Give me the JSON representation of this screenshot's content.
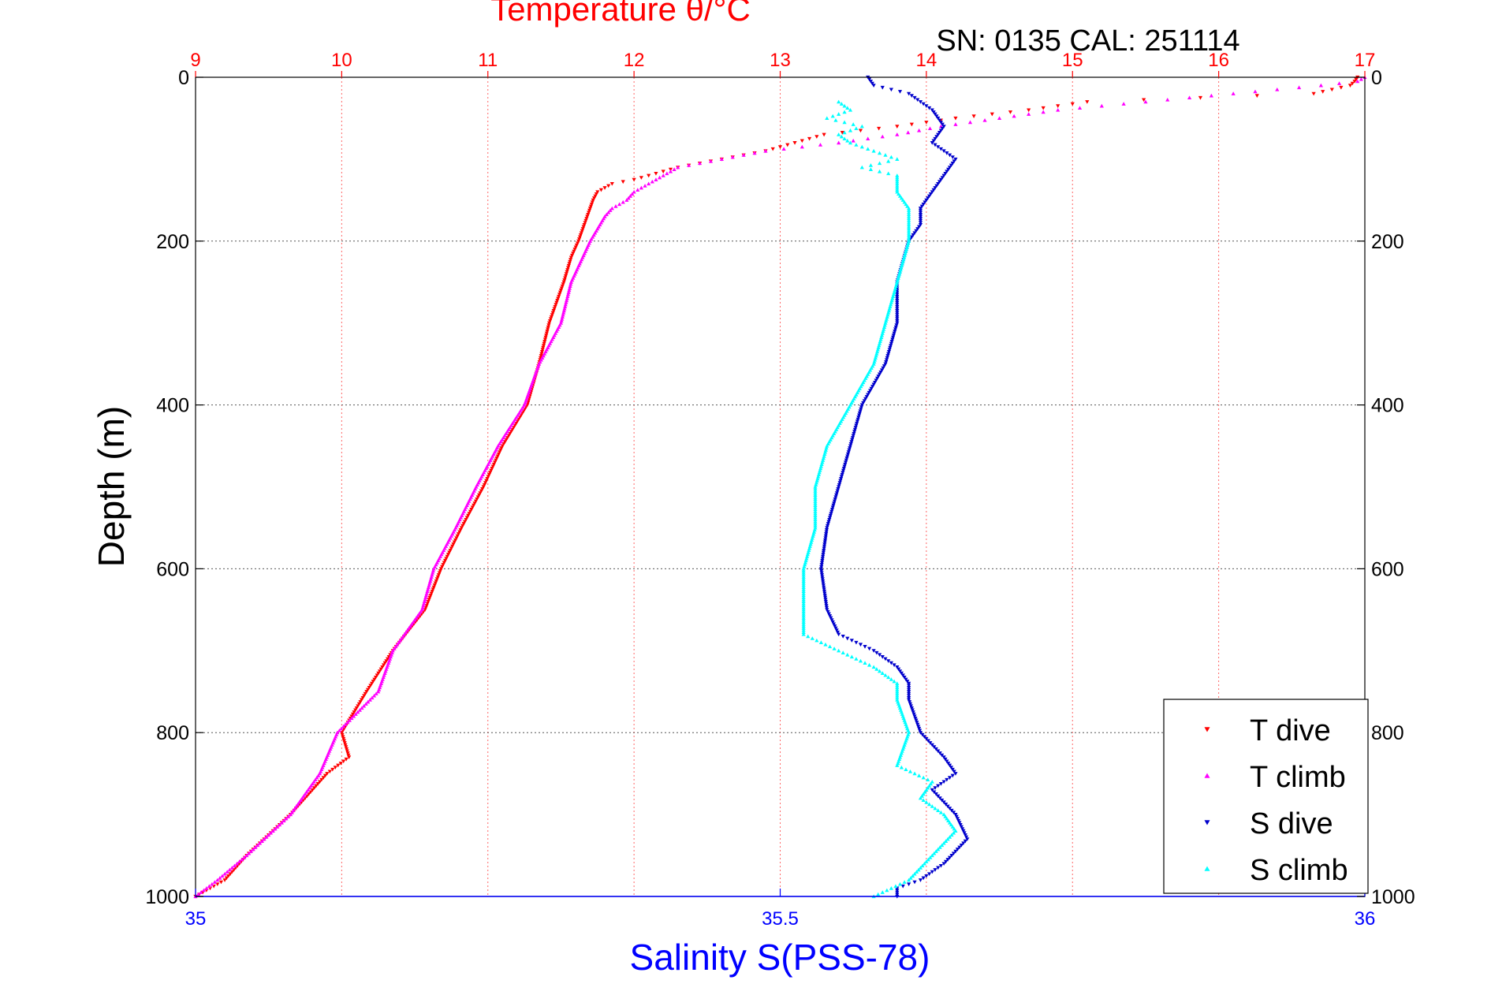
{
  "chart_data": {
    "type": "scatter",
    "title": "Temperature θ/°C",
    "subtitle": "SN: 0135  CAL: 251114",
    "ylabel": "Depth (m)",
    "xlabel_bottom": "Salinity S(PSS-78)",
    "ylim": [
      1000,
      0
    ],
    "y_ticks": [
      "0",
      "200",
      "400",
      "600",
      "800",
      "1000"
    ],
    "y_ticks_right": [
      "0",
      "200",
      "400",
      "600",
      "800",
      "1000"
    ],
    "x_top": {
      "label": "Temperature θ/°C",
      "lim": [
        9,
        17
      ],
      "ticks": [
        "9",
        "10",
        "11",
        "12",
        "13",
        "14",
        "15",
        "16",
        "17"
      ],
      "color": "#ff0000"
    },
    "x_bottom": {
      "label": "Salinity S(PSS-78)",
      "lim": [
        35,
        36
      ],
      "ticks": [
        "35",
        "35.5",
        "36"
      ],
      "color": "#0000ff"
    },
    "grid": true,
    "legend_position": "bottom-right",
    "series": [
      {
        "name": "T dive",
        "axis": "top",
        "color": "#ff0000",
        "marker": "triangle-down",
        "depth": [
          0,
          5,
          10,
          20,
          30,
          40,
          50,
          60,
          70,
          80,
          90,
          100,
          110,
          120,
          125,
          130,
          140,
          150,
          160,
          180,
          200,
          220,
          250,
          280,
          300,
          350,
          400,
          450,
          500,
          550,
          600,
          650,
          700,
          750,
          800,
          830,
          850,
          880,
          900,
          950,
          980,
          1000
        ],
        "values": [
          16.95,
          16.93,
          16.9,
          16.65,
          15.1,
          14.7,
          14.2,
          13.8,
          13.3,
          13.1,
          12.9,
          12.6,
          12.3,
          12.1,
          12.0,
          11.85,
          11.75,
          11.72,
          11.7,
          11.66,
          11.62,
          11.57,
          11.52,
          11.46,
          11.42,
          11.35,
          11.27,
          11.1,
          10.97,
          10.82,
          10.68,
          10.57,
          10.35,
          10.17,
          10.0,
          10.05,
          9.9,
          9.75,
          9.65,
          9.35,
          9.2,
          9.0
        ]
      },
      {
        "name": "T climb",
        "axis": "top",
        "color": "#ff00ff",
        "marker": "triangle-up",
        "depth": [
          0,
          5,
          10,
          20,
          30,
          40,
          50,
          60,
          70,
          80,
          90,
          100,
          110,
          120,
          130,
          140,
          150,
          160,
          170,
          200,
          250,
          300,
          350,
          400,
          450,
          500,
          550,
          600,
          650,
          700,
          750,
          800,
          850,
          900,
          950,
          980,
          1000
        ],
        "values": [
          17.0,
          16.95,
          16.7,
          16.1,
          15.5,
          14.9,
          14.5,
          14.1,
          13.8,
          13.4,
          12.9,
          12.6,
          12.3,
          12.2,
          12.1,
          12.0,
          11.95,
          11.85,
          11.8,
          11.7,
          11.57,
          11.5,
          11.35,
          11.25,
          11.07,
          10.92,
          10.78,
          10.63,
          10.55,
          10.35,
          10.25,
          9.97,
          9.85,
          9.65,
          9.35,
          9.15,
          9.0
        ]
      },
      {
        "name": "S dive",
        "axis": "bottom",
        "color": "#0000cc",
        "marker": "triangle-down",
        "depth": [
          0,
          10,
          20,
          40,
          60,
          80,
          100,
          120,
          140,
          160,
          180,
          200,
          250,
          300,
          350,
          400,
          450,
          500,
          550,
          600,
          650,
          680,
          700,
          720,
          740,
          760,
          800,
          830,
          850,
          870,
          900,
          930,
          960,
          980,
          990,
          1000
        ],
        "values": [
          35.575,
          35.58,
          35.61,
          35.63,
          35.64,
          35.63,
          35.65,
          35.64,
          35.63,
          35.62,
          35.62,
          35.61,
          35.6,
          35.6,
          35.59,
          35.57,
          35.56,
          35.55,
          35.54,
          35.535,
          35.54,
          35.55,
          35.58,
          35.6,
          35.61,
          35.61,
          35.62,
          35.64,
          35.65,
          35.63,
          35.65,
          35.66,
          35.64,
          35.62,
          35.6,
          35.6
        ]
      },
      {
        "name": "S climb",
        "axis": "bottom",
        "color": "#00ffff",
        "marker": "triangle-up",
        "depth": [
          30,
          40,
          50,
          60,
          70,
          80,
          90,
          100,
          110,
          120,
          140,
          160,
          180,
          200,
          250,
          300,
          350,
          400,
          450,
          500,
          550,
          600,
          650,
          680,
          700,
          720,
          740,
          760,
          800,
          840,
          860,
          880,
          900,
          920,
          950,
          980,
          1000
        ],
        "values": [
          35.55,
          35.56,
          35.54,
          35.57,
          35.55,
          35.56,
          35.58,
          35.6,
          35.57,
          35.6,
          35.6,
          35.61,
          35.61,
          35.61,
          35.6,
          35.59,
          35.58,
          35.56,
          35.54,
          35.53,
          35.53,
          35.52,
          35.52,
          35.52,
          35.55,
          35.58,
          35.6,
          35.6,
          35.61,
          35.6,
          35.63,
          35.62,
          35.64,
          35.65,
          35.63,
          35.61,
          35.58
        ]
      }
    ]
  }
}
